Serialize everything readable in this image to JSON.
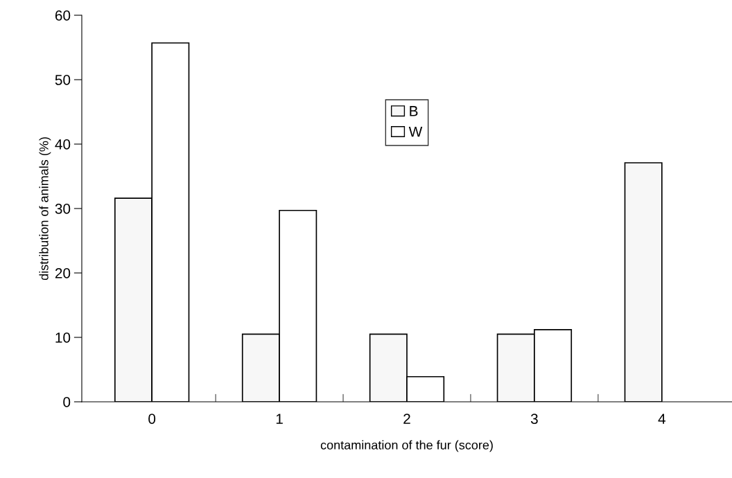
{
  "chart_data": {
    "type": "bar",
    "xlabel": "contamination of the fur (score)",
    "ylabel": "distribution of animals (%)",
    "categories": [
      "0",
      "1",
      "2",
      "3",
      "4"
    ],
    "series": [
      {
        "name": "B",
        "color": "#f7f7f7",
        "values": [
          31.6,
          10.5,
          10.5,
          10.5,
          37.1
        ]
      },
      {
        "name": "W",
        "color": "#ffffff",
        "values": [
          55.7,
          29.7,
          3.9,
          11.2,
          null
        ]
      }
    ],
    "ylim": [
      0,
      60
    ],
    "yticks": [
      0,
      10,
      20,
      30,
      40,
      50,
      60
    ],
    "grid": false,
    "legend": "top"
  }
}
